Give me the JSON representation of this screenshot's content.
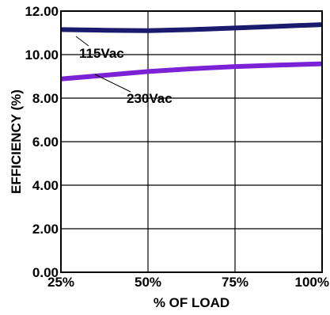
{
  "chart_data": {
    "type": "line",
    "xlabel": "% OF LOAD",
    "ylabel": "EFFICIENCY (%)",
    "x": [
      25,
      37.5,
      50,
      62.5,
      75,
      87.5,
      100
    ],
    "xticks": [
      "25%",
      "50%",
      "75%",
      "100%"
    ],
    "xlim": [
      25,
      100
    ],
    "yticks": [
      "0.00",
      "2.00",
      "4.00",
      "6.00",
      "8.00",
      "10.00",
      "12.00"
    ],
    "ylim": [
      0,
      12
    ],
    "grid": true,
    "series": [
      {
        "name": "115Vac",
        "color": "#1a1a6e",
        "values": [
          11.15,
          11.12,
          11.1,
          11.15,
          11.22,
          11.3,
          11.38
        ]
      },
      {
        "name": "230Vac",
        "color": "#7b22d6",
        "values": [
          8.88,
          9.05,
          9.22,
          9.35,
          9.45,
          9.52,
          9.58
        ]
      }
    ]
  }
}
